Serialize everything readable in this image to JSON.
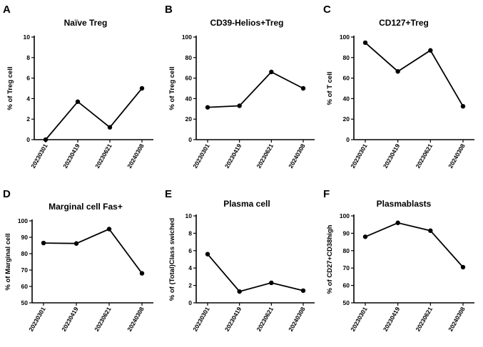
{
  "chart_data": [
    {
      "letter": "A",
      "type": "line",
      "title": "Naïve Treg",
      "ylabel": "% of Treg cell",
      "xlabel": "",
      "categories": [
        "20230301",
        "20230419",
        "20230621",
        "20240308"
      ],
      "values": [
        0,
        3.7,
        1.2,
        5.0
      ],
      "ylim": [
        0,
        10
      ],
      "yticks": [
        0,
        2,
        4,
        6,
        8,
        10
      ]
    },
    {
      "letter": "B",
      "type": "line",
      "title": "CD39-Helios+Treg",
      "ylabel": "% of Treg cell",
      "xlabel": "",
      "categories": [
        "20230301",
        "20230419",
        "20230621",
        "20240308"
      ],
      "values": [
        31.5,
        33,
        66,
        50
      ],
      "ylim": [
        0,
        100
      ],
      "yticks": [
        0,
        20,
        40,
        60,
        80,
        100
      ]
    },
    {
      "letter": "C",
      "type": "line",
      "title": "CD127+Treg",
      "ylabel": "% of T cell",
      "xlabel": "",
      "categories": [
        "20230301",
        "20230419",
        "20230621",
        "20240308"
      ],
      "values": [
        94.5,
        66.5,
        87,
        32.5
      ],
      "ylim": [
        0,
        100
      ],
      "yticks": [
        0,
        20,
        40,
        60,
        80,
        100
      ]
    },
    {
      "letter": "D",
      "type": "line",
      "title": "Marginal cell Fas+",
      "ylabel": "% of Marginal cell",
      "xlabel": "",
      "categories": [
        "20230301",
        "20230419",
        "20230621",
        "20240308"
      ],
      "values": [
        86.5,
        86.2,
        95,
        68
      ],
      "ylim": [
        50,
        100
      ],
      "yticks": [
        50,
        60,
        70,
        80,
        90,
        100
      ]
    },
    {
      "letter": "E",
      "type": "line",
      "title": "Plasma cell",
      "ylabel": "% of (Total)Class swiched",
      "xlabel": "",
      "categories": [
        "20230301",
        "20230419",
        "20230621",
        "20240308"
      ],
      "values": [
        5.6,
        1.3,
        2.3,
        1.4
      ],
      "ylim": [
        0,
        10
      ],
      "yticks": [
        0,
        2,
        4,
        6,
        8,
        10
      ]
    },
    {
      "letter": "F",
      "type": "line",
      "title": "Plasmablasts",
      "ylabel": "% of CD27+CD38high",
      "xlabel": "",
      "categories": [
        "20230301",
        "20230419",
        "20230621",
        "20240308"
      ],
      "values": [
        88,
        96,
        91.5,
        70.5
      ],
      "ylim": [
        50,
        100
      ],
      "yticks": [
        50,
        60,
        70,
        80,
        90,
        100
      ]
    }
  ]
}
